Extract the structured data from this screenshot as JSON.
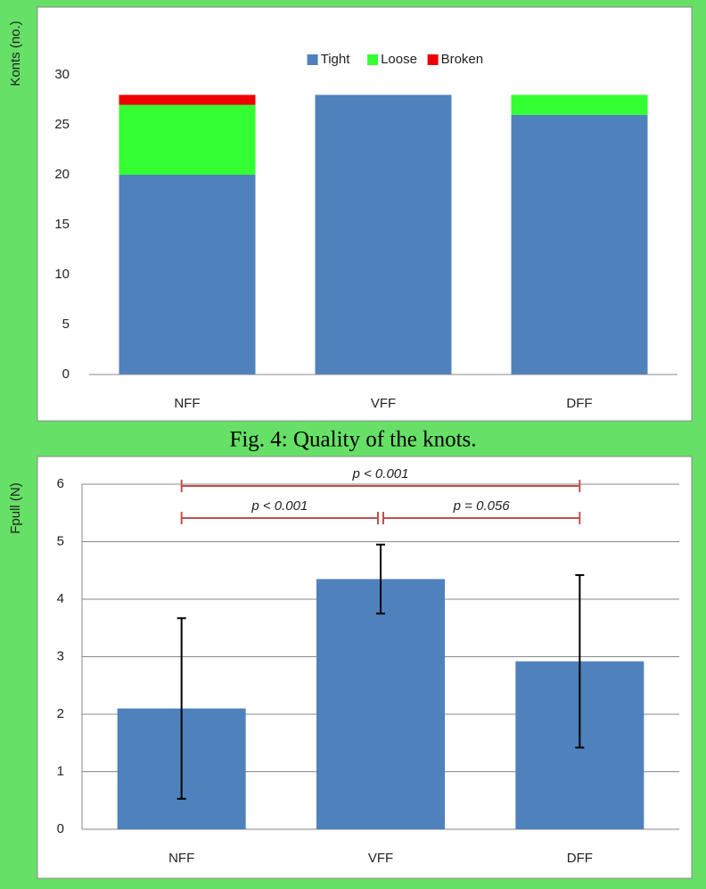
{
  "chart_data": [
    {
      "type": "stacked_bar",
      "y_label": "Konts (no.)",
      "caption": "Fig. 4: Quality of the knots.",
      "categories": [
        "NFF",
        "VFF",
        "DFF"
      ],
      "series": [
        {
          "name": "Tight",
          "color": "#4f81bd",
          "values": [
            20,
            28,
            26
          ]
        },
        {
          "name": "Loose",
          "color": "#33ff33",
          "values": [
            7,
            0,
            2
          ]
        },
        {
          "name": "Broken",
          "color": "#ee0000",
          "values": [
            1,
            0,
            0
          ]
        }
      ],
      "ylim": [
        0,
        30
      ],
      "yticks": [
        0,
        5,
        10,
        15,
        20,
        25,
        30
      ],
      "grid": false,
      "legend": "top"
    },
    {
      "type": "bar_error",
      "y_label": "Fpull (N)",
      "categories": [
        "NFF",
        "VFF",
        "DFF"
      ],
      "color": "#4f81bd",
      "values": [
        2.1,
        4.35,
        2.92
      ],
      "errors": [
        1.57,
        0.6,
        1.5
      ],
      "ylim": [
        0,
        6
      ],
      "yticks": [
        0,
        1,
        2,
        3,
        4,
        5,
        6
      ],
      "grid": true,
      "annotations": [
        {
          "text": "p < 0.001",
          "from": "NFF",
          "to": "DFF"
        },
        {
          "text": "p < 0.001",
          "from": "NFF",
          "to": "VFF"
        },
        {
          "text": "p = 0.056",
          "from": "VFF",
          "to": "DFF"
        }
      ],
      "annotation_color": "#c0504d"
    }
  ]
}
